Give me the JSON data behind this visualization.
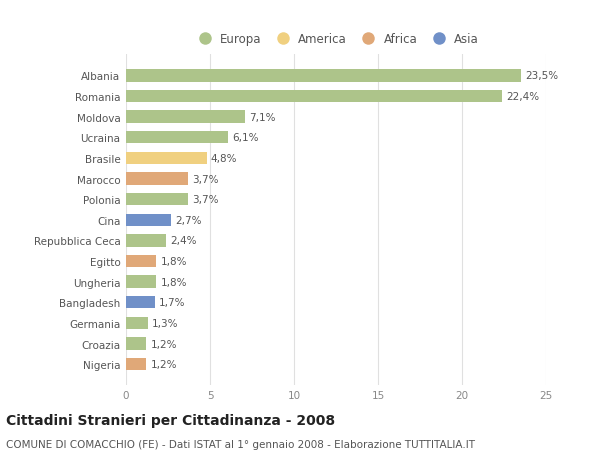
{
  "countries": [
    "Albania",
    "Romania",
    "Moldova",
    "Ucraina",
    "Brasile",
    "Marocco",
    "Polonia",
    "Cina",
    "Repubblica Ceca",
    "Egitto",
    "Ungheria",
    "Bangladesh",
    "Germania",
    "Croazia",
    "Nigeria"
  ],
  "values": [
    23.5,
    22.4,
    7.1,
    6.1,
    4.8,
    3.7,
    3.7,
    2.7,
    2.4,
    1.8,
    1.8,
    1.7,
    1.3,
    1.2,
    1.2
  ],
  "labels": [
    "23,5%",
    "22,4%",
    "7,1%",
    "6,1%",
    "4,8%",
    "3,7%",
    "3,7%",
    "2,7%",
    "2,4%",
    "1,8%",
    "1,8%",
    "1,7%",
    "1,3%",
    "1,2%",
    "1,2%"
  ],
  "continents": [
    "Europa",
    "Europa",
    "Europa",
    "Europa",
    "America",
    "Africa",
    "Europa",
    "Asia",
    "Europa",
    "Africa",
    "Europa",
    "Asia",
    "Europa",
    "Europa",
    "Africa"
  ],
  "colors": {
    "Europa": "#adc48a",
    "America": "#f0d080",
    "Africa": "#e0a878",
    "Asia": "#7090c8"
  },
  "xlim": [
    0,
    25
  ],
  "xticks": [
    0,
    5,
    10,
    15,
    20,
    25
  ],
  "title": "Cittadini Stranieri per Cittadinanza - 2008",
  "subtitle": "COMUNE DI COMACCHIO (FE) - Dati ISTAT al 1° gennaio 2008 - Elaborazione TUTTITALIA.IT",
  "background_color": "#ffffff",
  "grid_color": "#e0e0e0",
  "bar_height": 0.6,
  "label_fontsize": 7.5,
  "tick_fontsize": 7.5,
  "title_fontsize": 10,
  "subtitle_fontsize": 7.5,
  "legend_order": [
    "Europa",
    "America",
    "Africa",
    "Asia"
  ]
}
